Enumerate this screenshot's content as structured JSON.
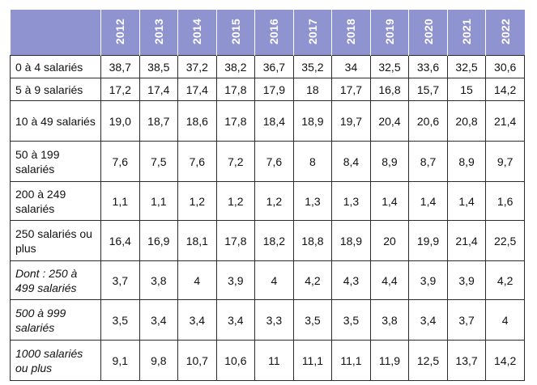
{
  "table": {
    "years": [
      "2012",
      "2013",
      "2014",
      "2015",
      "2016",
      "2017",
      "2018",
      "2019",
      "2020",
      "2021",
      "2022"
    ],
    "rows": [
      {
        "label": "0 à 4 salariés",
        "italic": false,
        "size": "short",
        "values": [
          "38,7",
          "38,5",
          "37,2",
          "38,2",
          "36,7",
          "35,2",
          "34",
          "32,5",
          "33,6",
          "32,5",
          "30,6"
        ]
      },
      {
        "label": "5 à 9 salariés",
        "italic": false,
        "size": "short",
        "values": [
          "17,2",
          "17,4",
          "17,4",
          "17,8",
          "17,9",
          "18",
          "17,7",
          "16,8",
          "15,7",
          "15",
          "14,2"
        ]
      },
      {
        "label": "10 à 49 salariés",
        "italic": false,
        "size": "tall",
        "values": [
          "19,0",
          "18,7",
          "18,6",
          "17,8",
          "18,4",
          "18,9",
          "19,7",
          "20,4",
          "20,6",
          "20,8",
          "21,4"
        ]
      },
      {
        "label": "50 à 199 salariés",
        "italic": false,
        "size": "tall",
        "values": [
          "7,6",
          "7,5",
          "7,6",
          "7,2",
          "7,6",
          "8",
          "8,4",
          "8,9",
          "8,7",
          "8,9",
          "9,7"
        ]
      },
      {
        "label": "200 à 249 salariés",
        "italic": false,
        "size": "mid",
        "values": [
          "1,1",
          "1,1",
          "1,2",
          "1,2",
          "1,2",
          "1,3",
          "1,3",
          "1,4",
          "1,4",
          "1,4",
          "1,6"
        ]
      },
      {
        "label": "250 salariés ou plus",
        "italic": false,
        "size": "tall",
        "values": [
          "16,4",
          "16,9",
          "18,1",
          "17,8",
          "18,2",
          "18,8",
          "18,9",
          "20",
          "19,9",
          "21,4",
          "22,5"
        ]
      },
      {
        "label": "Dont : 250 à 499 salariés",
        "italic": true,
        "size": "mid",
        "values": [
          "3,7",
          "3,8",
          "4",
          "3,9",
          "4",
          "4,2",
          "4,3",
          "4,4",
          "3,9",
          "3,9",
          "4,2"
        ]
      },
      {
        "label": "500 à 999 salariés",
        "italic": true,
        "size": "tall",
        "values": [
          "3,5",
          "3,4",
          "3,4",
          "3,4",
          "3,3",
          "3,5",
          "3,5",
          "3,8",
          "3,4",
          "3,7",
          "4"
        ]
      },
      {
        "label": "1000 salariés ou plus",
        "italic": true,
        "size": "tall",
        "values": [
          "9,1",
          "9,8",
          "10,7",
          "10,6",
          "11",
          "11,1",
          "11,1",
          "11,9",
          "12,5",
          "13,7",
          "14,2"
        ]
      }
    ]
  }
}
